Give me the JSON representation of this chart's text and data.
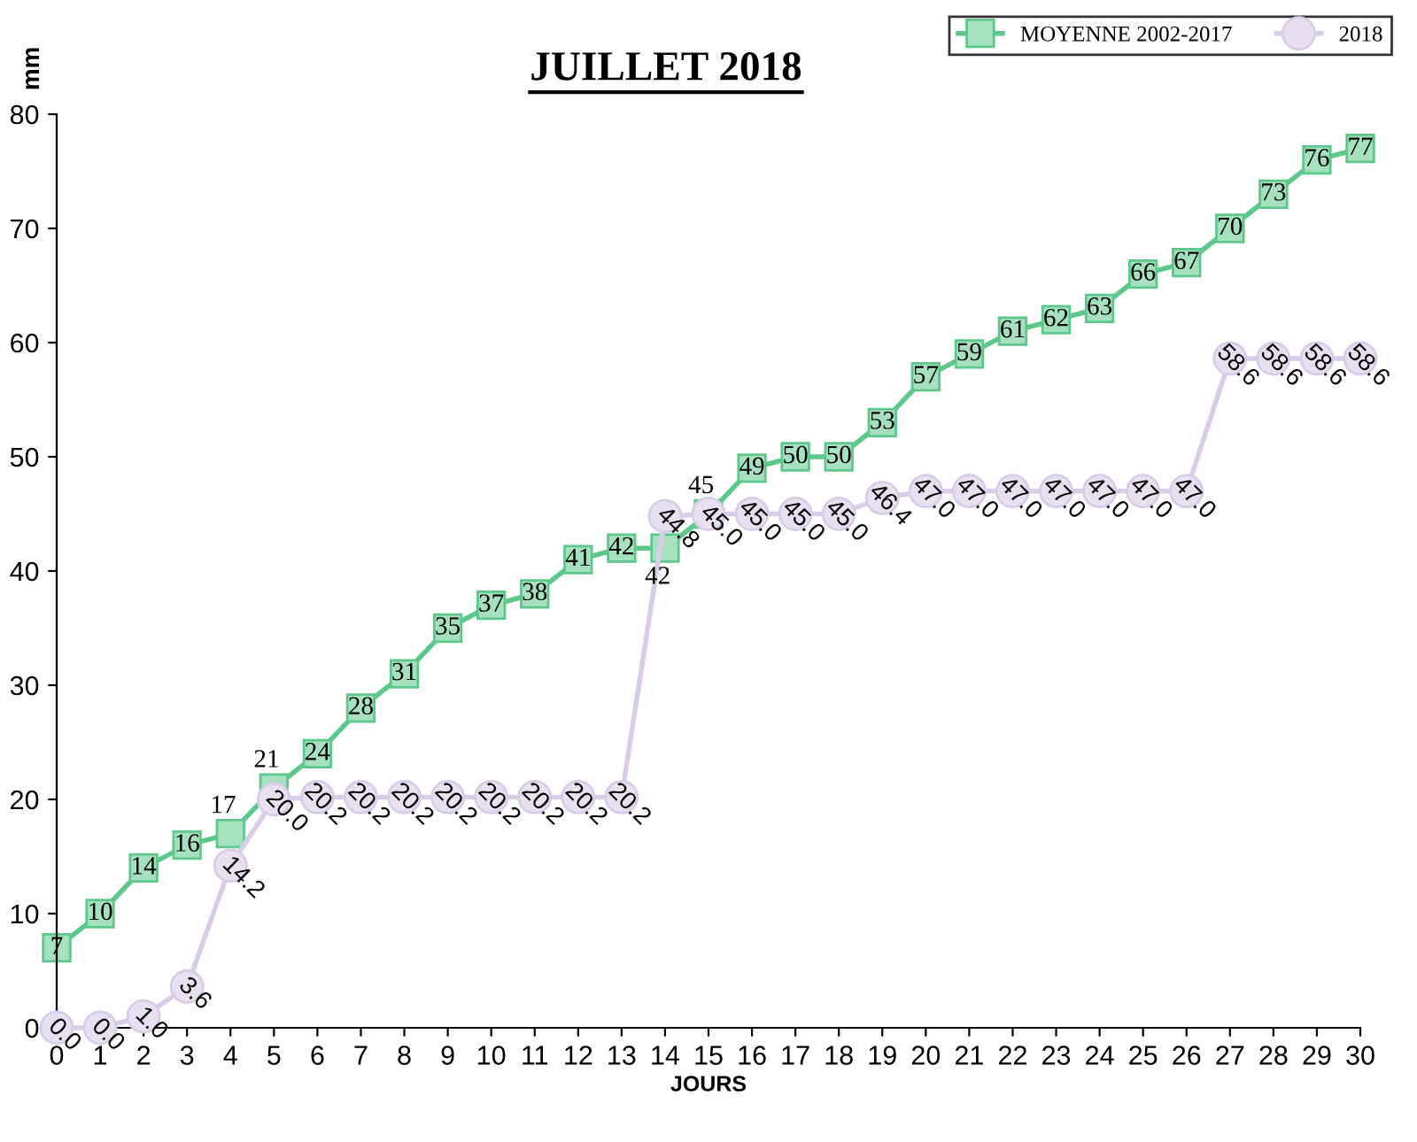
{
  "chart_data": {
    "type": "line",
    "title": "JUILLET 2018",
    "xlabel": "JOURS",
    "ylabel": "mm",
    "x": [
      0,
      1,
      2,
      3,
      4,
      5,
      6,
      7,
      8,
      9,
      10,
      11,
      12,
      13,
      14,
      15,
      16,
      17,
      18,
      19,
      20,
      21,
      22,
      23,
      24,
      25,
      26,
      27,
      28,
      29,
      30
    ],
    "series": [
      {
        "name": "MOYENNE 2002-2017",
        "color": "#5cc98a",
        "marker": "square",
        "values": [
          7,
          10,
          14,
          16,
          17,
          21,
          24,
          28,
          31,
          35,
          37,
          38,
          41,
          42,
          42,
          45,
          49,
          50,
          50,
          53,
          57,
          59,
          61,
          62,
          63,
          66,
          67,
          70,
          73,
          76,
          77
        ]
      },
      {
        "name": "2018",
        "color": "#d9cce8",
        "marker": "circle",
        "values": [
          0.0,
          0.0,
          1.0,
          3.6,
          14.2,
          20.0,
          20.2,
          20.2,
          20.2,
          20.2,
          20.2,
          20.2,
          20.2,
          20.2,
          44.8,
          45.0,
          45.0,
          45.0,
          45.0,
          46.4,
          47.0,
          47.0,
          47.0,
          47.0,
          47.0,
          47.0,
          47.0,
          58.6,
          58.6,
          58.6,
          58.6
        ],
        "value_labels": [
          "0.0",
          "0.0",
          "1.0",
          "3.6",
          "14.2",
          "20.0",
          "20.2",
          "20.2",
          "20.2",
          "20.2",
          "20.2",
          "20.2",
          "20.2",
          "20.2",
          "44.8",
          "45.0",
          "45.0",
          "45.0",
          "45.0",
          "46.4",
          "47.0",
          "47.0",
          "47.0",
          "47.0",
          "47.0",
          "47.0",
          "47.0",
          "58.6",
          "58.6",
          "58.6",
          "58.6"
        ]
      }
    ],
    "data_labels": true,
    "xlim": [
      0,
      30
    ],
    "ylim": [
      0,
      80
    ],
    "xticks": [
      0,
      1,
      2,
      3,
      4,
      5,
      6,
      7,
      8,
      9,
      10,
      11,
      12,
      13,
      14,
      15,
      16,
      17,
      18,
      19,
      20,
      21,
      22,
      23,
      24,
      25,
      26,
      27,
      28,
      29,
      30
    ],
    "yticks": [
      0,
      10,
      20,
      30,
      40,
      50,
      60,
      70,
      80
    ],
    "grid": false,
    "legend": "top right",
    "line_style": "solid"
  }
}
